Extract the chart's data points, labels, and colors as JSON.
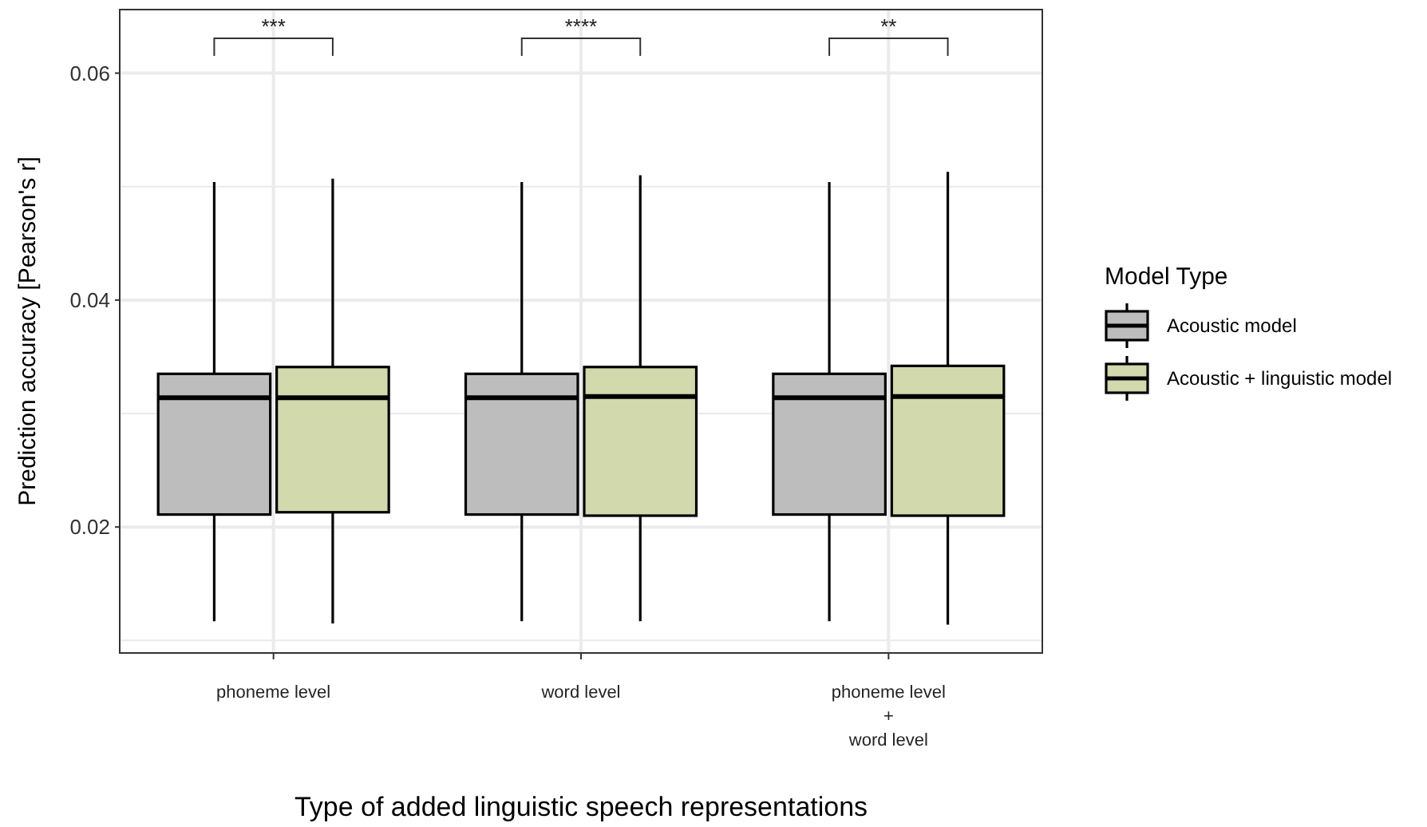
{
  "chart_data": {
    "type": "box",
    "xlabel": "Type of added linguistic speech representations",
    "ylabel": "Prediction accuracy [Pearson's r]",
    "legend_title": "Model Type",
    "legend": "right",
    "grid": true,
    "categories": [
      "phoneme level",
      "word level",
      "phoneme level\n+\nword level"
    ],
    "ylim": [
      0.0089,
      0.0656
    ],
    "yticks": [
      0.02,
      0.04,
      0.06
    ],
    "series": [
      {
        "name": "Acoustic model",
        "color": "#bdbdbd",
        "boxes": [
          {
            "low": 0.0117,
            "q1": 0.0211,
            "median": 0.0314,
            "q3": 0.0335,
            "high": 0.0504
          },
          {
            "low": 0.0117,
            "q1": 0.0211,
            "median": 0.0314,
            "q3": 0.0335,
            "high": 0.0504
          },
          {
            "low": 0.0117,
            "q1": 0.0211,
            "median": 0.0314,
            "q3": 0.0335,
            "high": 0.0504
          }
        ]
      },
      {
        "name": "Acoustic + linguistic model",
        "color": "#d1d9ad",
        "boxes": [
          {
            "low": 0.0115,
            "q1": 0.0213,
            "median": 0.0314,
            "q3": 0.0341,
            "high": 0.0507
          },
          {
            "low": 0.0117,
            "q1": 0.021,
            "median": 0.0315,
            "q3": 0.0341,
            "high": 0.051
          },
          {
            "low": 0.0114,
            "q1": 0.021,
            "median": 0.0315,
            "q3": 0.0342,
            "high": 0.0513
          }
        ]
      }
    ],
    "annotations": [
      "***",
      "****",
      "**"
    ]
  }
}
